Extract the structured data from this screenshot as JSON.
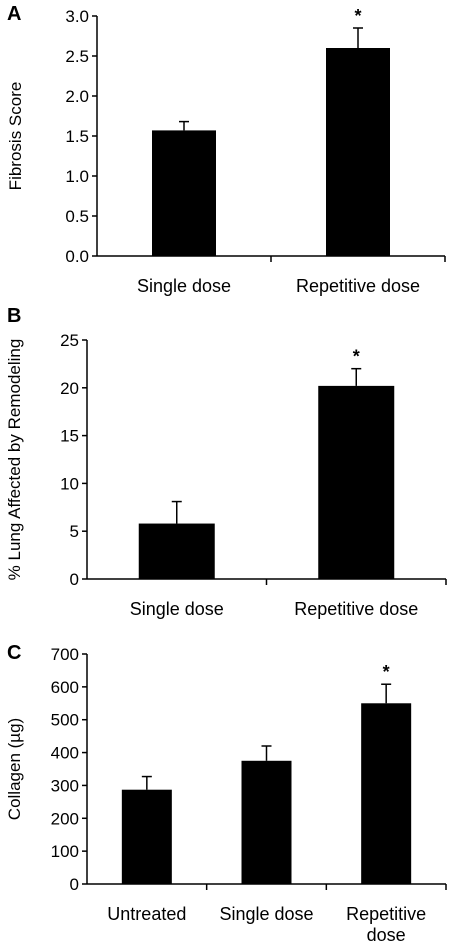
{
  "chart_data": [
    {
      "type": "bar",
      "panel": "A",
      "title": "",
      "xlabel": "",
      "ylabel": "Fibrosis Score",
      "ylim": [
        0,
        3.0
      ],
      "yticks": [
        "0.0",
        "0.5",
        "1.0",
        "1.5",
        "2.0",
        "2.5",
        "3.0"
      ],
      "categories": [
        [
          "Single dose"
        ],
        [
          "Repetitive dose"
        ]
      ],
      "values": [
        1.57,
        2.6
      ],
      "errors": [
        0.11,
        0.25
      ],
      "annotations": [
        "",
        "*"
      ],
      "grid": false,
      "bar_color": "#000000"
    },
    {
      "type": "bar",
      "panel": "B",
      "title": "",
      "xlabel": "",
      "ylabel": "% Lung Affected by Remodeling",
      "ylim": [
        0,
        25
      ],
      "yticks": [
        "0",
        "5",
        "10",
        "15",
        "20",
        "25"
      ],
      "categories": [
        [
          "Single dose"
        ],
        [
          "Repetitive dose"
        ]
      ],
      "values": [
        5.8,
        20.2
      ],
      "errors": [
        2.3,
        1.8
      ],
      "annotations": [
        "",
        "*"
      ],
      "grid": false,
      "bar_color": "#000000"
    },
    {
      "type": "bar",
      "panel": "C",
      "title": "",
      "xlabel": "",
      "ylabel": "Collagen (µg)",
      "ylim": [
        0,
        700
      ],
      "yticks": [
        "0",
        "100",
        "200",
        "300",
        "400",
        "500",
        "600",
        "700"
      ],
      "categories": [
        [
          "Untreated"
        ],
        [
          "Single dose"
        ],
        [
          "Repetitive",
          "dose"
        ]
      ],
      "values": [
        287,
        375,
        550
      ],
      "errors": [
        40,
        45,
        58
      ],
      "annotations": [
        "",
        "",
        "*"
      ],
      "grid": false,
      "bar_color": "#000000"
    }
  ]
}
